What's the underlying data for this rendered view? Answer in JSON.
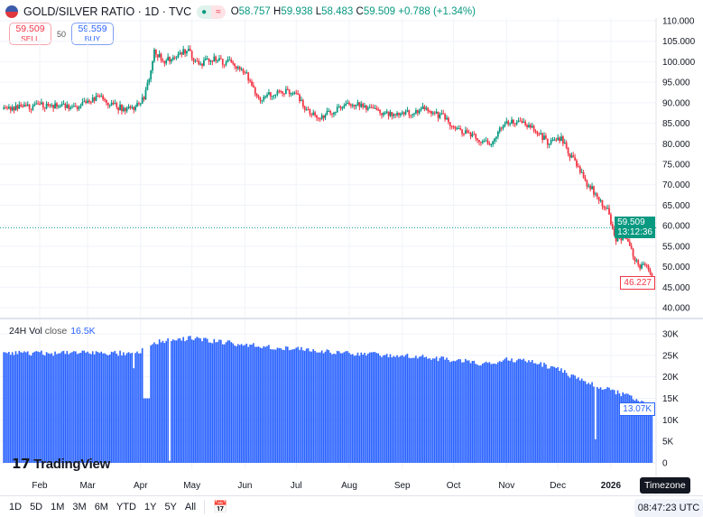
{
  "header": {
    "symbol": "GOLD/SILVER RATIO · 1D · TVC",
    "status_icons": [
      "market-open-dot-icon",
      "delayed-wave-icon"
    ],
    "ohlc": {
      "o_label": "O",
      "o": "58.757",
      "h_label": "H",
      "h": "59.938",
      "l_label": "L",
      "l": "58.483",
      "c_label": "C",
      "c": "59.509",
      "change": "+0.788 (+1.34%)"
    }
  },
  "trade": {
    "sell_price": "59.509",
    "sell_label": "SELL",
    "spread": "50",
    "buy_price": "59.559",
    "buy_label": "BUY"
  },
  "price_axis": {
    "ticks": [
      "110.000",
      "105.000",
      "100.000",
      "95.000",
      "90.000",
      "85.000",
      "80.000",
      "75.000",
      "70.000",
      "65.000",
      "60.000",
      "55.000",
      "50.000",
      "45.000",
      "40.000"
    ],
    "last_price": "59.509",
    "countdown": "13:12:36",
    "low_marker": "46.227"
  },
  "volume": {
    "label": "24H Vol",
    "source": "close",
    "value": "16.5K",
    "ticks": [
      "30K",
      "25K",
      "20K",
      "15K",
      "10K",
      "5K",
      "0"
    ],
    "last_value": "13.07K"
  },
  "time_axis": [
    "Feb",
    "Mar",
    "Apr",
    "May",
    "Jun",
    "Jul",
    "Aug",
    "Sep",
    "Oct",
    "Nov",
    "Dec",
    "2026"
  ],
  "logo": "TradingView",
  "toolbar": {
    "ranges": [
      "1D",
      "5D",
      "1M",
      "3M",
      "6M",
      "YTD",
      "1Y",
      "5Y",
      "All"
    ],
    "time": "08:47:23 UTC",
    "tooltip": "Timezone"
  },
  "colors": {
    "up": "#089981",
    "down": "#f23645",
    "volume": "#2962ff"
  },
  "chart_data": [
    {
      "type": "candlestick",
      "ylim": [
        40,
        110
      ],
      "x_range": [
        "2025-01-11",
        "2026-01-25"
      ],
      "close_anchors": [
        [
          "2025-01-11",
          88.5
        ],
        [
          "2025-01-25",
          89
        ],
        [
          "2025-02-08",
          89.5
        ],
        [
          "2025-02-22",
          88.5
        ],
        [
          "2025-03-01",
          90
        ],
        [
          "2025-03-08",
          91.5
        ],
        [
          "2025-03-15",
          89.5
        ],
        [
          "2025-03-22",
          88.5
        ],
        [
          "2025-03-29",
          89
        ],
        [
          "2025-04-03",
          91
        ],
        [
          "2025-04-06",
          96
        ],
        [
          "2025-04-09",
          103
        ],
        [
          "2025-04-14",
          100
        ],
        [
          "2025-04-21",
          101
        ],
        [
          "2025-04-28",
          103
        ],
        [
          "2025-05-05",
          99
        ],
        [
          "2025-05-12",
          101
        ],
        [
          "2025-05-19",
          100
        ],
        [
          "2025-05-26",
          99.5
        ],
        [
          "2025-06-02",
          97
        ],
        [
          "2025-06-06",
          93
        ],
        [
          "2025-06-10",
          91
        ],
        [
          "2025-06-20",
          93
        ],
        [
          "2025-06-30",
          92.5
        ],
        [
          "2025-07-07",
          88
        ],
        [
          "2025-07-15",
          86.5
        ],
        [
          "2025-07-25",
          88.5
        ],
        [
          "2025-08-05",
          90
        ],
        [
          "2025-08-15",
          88
        ],
        [
          "2025-08-25",
          87.5
        ],
        [
          "2025-09-05",
          87.5
        ],
        [
          "2025-09-15",
          88.5
        ],
        [
          "2025-09-25",
          86.5
        ],
        [
          "2025-10-05",
          83
        ],
        [
          "2025-10-15",
          81.5
        ],
        [
          "2025-10-22",
          79.5
        ],
        [
          "2025-10-28",
          84
        ],
        [
          "2025-11-05",
          85.5
        ],
        [
          "2025-11-15",
          84
        ],
        [
          "2025-11-25",
          80.5
        ],
        [
          "2025-12-03",
          81
        ],
        [
          "2025-12-10",
          76
        ],
        [
          "2025-12-18",
          70
        ],
        [
          "2025-12-25",
          67
        ],
        [
          "2025-12-30",
          63.5
        ],
        [
          "2026-01-03",
          57
        ],
        [
          "2026-01-08",
          57.5
        ],
        [
          "2026-01-14",
          53
        ],
        [
          "2026-01-18",
          50
        ],
        [
          "2026-01-22",
          50.5
        ],
        [
          "2026-01-25",
          47
        ]
      ]
    },
    {
      "type": "bar",
      "name": "24H Vol",
      "ylim": [
        0,
        30000
      ],
      "anchors": [
        [
          "2025-01-11",
          25.5
        ],
        [
          "2025-03-31",
          25.5
        ],
        [
          "2025-04-08",
          28
        ],
        [
          "2025-05-01",
          29
        ],
        [
          "2025-05-31",
          27.5
        ],
        [
          "2025-06-30",
          26.5
        ],
        [
          "2025-07-31",
          25.5
        ],
        [
          "2025-08-31",
          25
        ],
        [
          "2025-09-30",
          24
        ],
        [
          "2025-10-20",
          23
        ],
        [
          "2025-10-31",
          24
        ],
        [
          "2025-11-15",
          23.5
        ],
        [
          "2025-11-30",
          22
        ],
        [
          "2025-12-15",
          19
        ],
        [
          "2025-12-31",
          17
        ],
        [
          "2026-01-15",
          15
        ],
        [
          "2026-01-25",
          13
        ]
      ],
      "overrides": [
        [
          "2025-03-28",
          22
        ],
        [
          "2025-04-03",
          15
        ],
        [
          "2025-04-04",
          15
        ],
        [
          "2025-04-05",
          15
        ],
        [
          "2025-04-06",
          15
        ],
        [
          "2025-04-18",
          0.5
        ],
        [
          "2025-12-23",
          5.5
        ]
      ],
      "unit": "K"
    }
  ]
}
